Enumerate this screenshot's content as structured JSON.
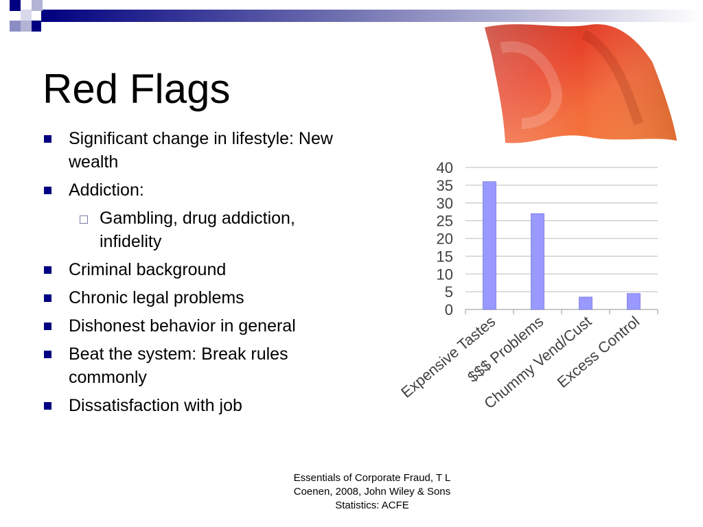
{
  "slide": {
    "title": "Red Flags",
    "bullets": [
      {
        "level": 1,
        "line1": "Significant change in lifestyle: New",
        "line2": "wealth"
      },
      {
        "level": 1,
        "line1": "Addiction:",
        "line2": ""
      },
      {
        "level": 2,
        "line1": "Gambling, drug addiction,",
        "line2": "infidelity"
      },
      {
        "level": 1,
        "line1": "Criminal background",
        "line2": ""
      },
      {
        "level": 1,
        "line1": "Chronic legal problems",
        "line2": ""
      },
      {
        "level": 1,
        "line1": "Dishonest behavior in general",
        "line2": ""
      },
      {
        "level": 1,
        "line1": "Beat the system: Break rules",
        "line2": "commonly"
      },
      {
        "level": 1,
        "line1": "Dissatisfaction with job",
        "line2": ""
      }
    ],
    "source": {
      "line1": "Essentials of Corporate Fraud, T L",
      "line2": "Coenen, 2008, John Wiley & Sons",
      "line3": "Statistics: ACFE"
    },
    "colors": {
      "bullet": "#000080",
      "bar": "#9999ff",
      "flag": "#e8442a"
    }
  },
  "chart_data": {
    "type": "bar",
    "categories": [
      "Expensive Tastes",
      "$$$ Problems",
      "Chummy Vend/Cust",
      "Excess Control"
    ],
    "values": [
      36,
      27,
      3.5,
      4.5
    ],
    "title": "",
    "xlabel": "",
    "ylabel": "",
    "ylim": [
      0,
      40
    ],
    "yticks": [
      0,
      5,
      10,
      15,
      20,
      25,
      30,
      35,
      40
    ],
    "grid": true,
    "legend": "none"
  }
}
